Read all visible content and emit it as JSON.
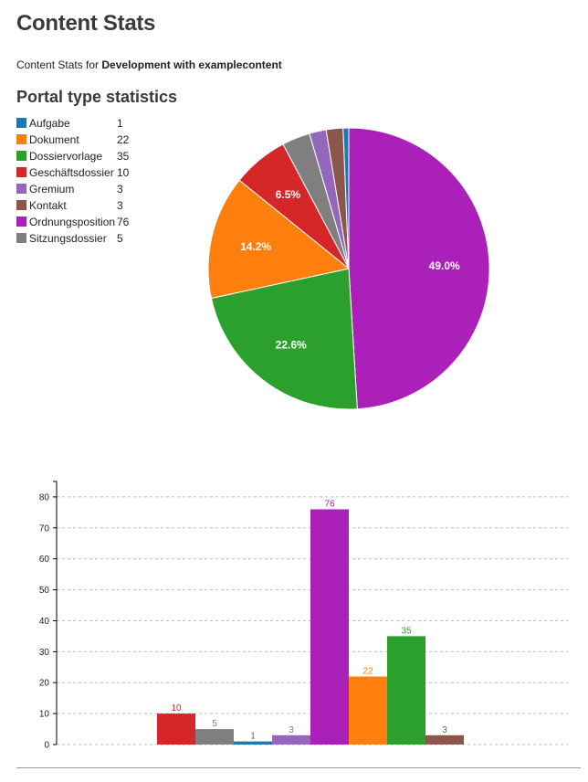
{
  "page": {
    "title": "Content Stats",
    "subtitle_prefix": "Content Stats for ",
    "subtitle_site": "Development with examplecontent",
    "section_title": "Portal type statistics"
  },
  "legend": [
    {
      "name": "Aufgabe",
      "count": "1",
      "color": "#1f77b4"
    },
    {
      "name": "Dokument",
      "count": "22",
      "color": "#ff7f0e"
    },
    {
      "name": "Dossiervorlage",
      "count": "35",
      "color": "#2ca02c"
    },
    {
      "name": "Geschäftsdossier",
      "count": "10",
      "color": "#d62728"
    },
    {
      "name": "Gremium",
      "count": "3",
      "color": "#9467bd"
    },
    {
      "name": "Kontakt",
      "count": "3",
      "color": "#8c564b"
    },
    {
      "name": "Ordnungsposition",
      "count": "76",
      "color": "#aa20b8"
    },
    {
      "name": "Sitzungsdossier",
      "count": "5",
      "color": "#7f7f7f"
    }
  ],
  "chart_data": [
    {
      "type": "pie",
      "slices": [
        {
          "name": "Ordnungsposition",
          "value": 76,
          "color": "#aa20b8",
          "label": "49.0%"
        },
        {
          "name": "Dossiervorlage",
          "value": 35,
          "color": "#2ca02c",
          "label": "22.6%"
        },
        {
          "name": "Dokument",
          "value": 22,
          "color": "#ff7f0e",
          "label": "14.2%"
        },
        {
          "name": "Geschäftsdossier",
          "value": 10,
          "color": "#d62728",
          "label": "6.5%"
        },
        {
          "name": "Sitzungsdossier",
          "value": 5,
          "color": "#7f7f7f",
          "label": ""
        },
        {
          "name": "Gremium",
          "value": 3,
          "color": "#9467bd",
          "label": ""
        },
        {
          "name": "Kontakt",
          "value": 3,
          "color": "#8c564b",
          "label": ""
        },
        {
          "name": "Aufgabe",
          "value": 1,
          "color": "#1f77b4",
          "label": ""
        }
      ]
    },
    {
      "type": "bar",
      "categories": [
        "Geschäftsdossier",
        "Sitzungsdossier",
        "Aufgabe",
        "Gremium",
        "Ordnungsposition",
        "Dokument",
        "Dossiervorlage",
        "Kontakt"
      ],
      "values": [
        10,
        5,
        1,
        3,
        76,
        22,
        35,
        3
      ],
      "colors": [
        "#d62728",
        "#7f7f7f",
        "#1f77b4",
        "#9467bd",
        "#aa20b8",
        "#ff7f0e",
        "#2ca02c",
        "#8c564b"
      ],
      "data_labels": [
        "10",
        "5",
        "1",
        "3",
        "76",
        "22",
        "35",
        "3"
      ],
      "yticks": [
        "0",
        "10",
        "20",
        "30",
        "40",
        "50",
        "60",
        "70",
        "80"
      ],
      "ylim": [
        0,
        85
      ],
      "grid": true,
      "grid_style": "dashed-horizontal"
    }
  ]
}
